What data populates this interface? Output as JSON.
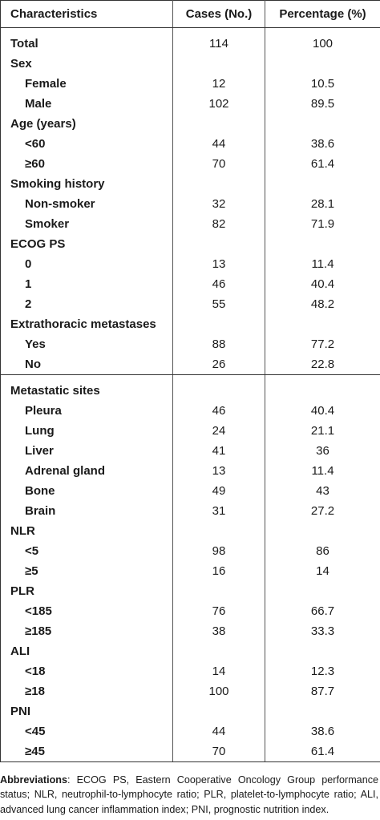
{
  "table": {
    "headers": [
      "Characteristics",
      "Cases (No.)",
      "Percentage (%)"
    ],
    "groups": [
      {
        "rows": [
          {
            "type": "cat",
            "label": "Total",
            "cases": "114",
            "pct": "100"
          },
          {
            "type": "cat",
            "label": "Sex",
            "cases": "",
            "pct": ""
          },
          {
            "type": "sub",
            "label": "Female",
            "cases": "12",
            "pct": "10.5"
          },
          {
            "type": "sub",
            "label": "Male",
            "cases": "102",
            "pct": "89.5"
          },
          {
            "type": "cat",
            "label": "Age (years)",
            "cases": "",
            "pct": ""
          },
          {
            "type": "sub",
            "label": "<60",
            "cases": "44",
            "pct": "38.6"
          },
          {
            "type": "sub",
            "label": "≥60",
            "cases": "70",
            "pct": "61.4"
          },
          {
            "type": "cat",
            "label": "Smoking history",
            "cases": "",
            "pct": ""
          },
          {
            "type": "sub",
            "label": "Non-smoker",
            "cases": "32",
            "pct": "28.1"
          },
          {
            "type": "sub",
            "label": "Smoker",
            "cases": "82",
            "pct": "71.9"
          },
          {
            "type": "cat",
            "label": "ECOG PS",
            "cases": "",
            "pct": ""
          },
          {
            "type": "sub",
            "label": "0",
            "cases": "13",
            "pct": "11.4"
          },
          {
            "type": "sub",
            "label": "1",
            "cases": "46",
            "pct": "40.4"
          },
          {
            "type": "sub",
            "label": "2",
            "cases": "55",
            "pct": "48.2"
          },
          {
            "type": "cat",
            "label": "Extrathoracic metastases",
            "cases": "",
            "pct": ""
          },
          {
            "type": "sub",
            "label": "Yes",
            "cases": "88",
            "pct": "77.2"
          },
          {
            "type": "sub",
            "label": "No",
            "cases": "26",
            "pct": "22.8"
          }
        ]
      },
      {
        "rows": [
          {
            "type": "cat",
            "label": "Metastatic sites",
            "cases": "",
            "pct": ""
          },
          {
            "type": "sub",
            "label": "Pleura",
            "cases": "46",
            "pct": "40.4"
          },
          {
            "type": "sub",
            "label": "Lung",
            "cases": "24",
            "pct": "21.1"
          },
          {
            "type": "sub",
            "label": "Liver",
            "cases": "41",
            "pct": "36"
          },
          {
            "type": "sub",
            "label": "Adrenal gland",
            "cases": "13",
            "pct": "11.4"
          },
          {
            "type": "sub",
            "label": "Bone",
            "cases": "49",
            "pct": "43"
          },
          {
            "type": "sub",
            "label": "Brain",
            "cases": "31",
            "pct": "27.2"
          },
          {
            "type": "cat",
            "label": "NLR",
            "cases": "",
            "pct": ""
          },
          {
            "type": "sub",
            "label": "<5",
            "cases": "98",
            "pct": "86"
          },
          {
            "type": "sub",
            "label": "≥5",
            "cases": "16",
            "pct": "14"
          },
          {
            "type": "cat",
            "label": "PLR",
            "cases": "",
            "pct": ""
          },
          {
            "type": "sub",
            "label": "<185",
            "cases": "76",
            "pct": "66.7"
          },
          {
            "type": "sub",
            "label": "≥185",
            "cases": "38",
            "pct": "33.3"
          },
          {
            "type": "cat",
            "label": "ALI",
            "cases": "",
            "pct": ""
          },
          {
            "type": "sub",
            "label": "<18",
            "cases": "14",
            "pct": "12.3"
          },
          {
            "type": "sub",
            "label": "≥18",
            "cases": "100",
            "pct": "87.7"
          },
          {
            "type": "cat",
            "label": "PNI",
            "cases": "",
            "pct": ""
          },
          {
            "type": "sub",
            "label": "<45",
            "cases": "44",
            "pct": "38.6"
          },
          {
            "type": "sub",
            "label": "≥45",
            "cases": "70",
            "pct": "61.4"
          }
        ]
      }
    ]
  },
  "footnote": {
    "label": "Abbreviations",
    "text": ": ECOG PS, Eastern Cooperative Oncology Group performance status; NLR, neutrophil-to-lymphocyte ratio; PLR, platelet-to-lymphocyte ratio; ALI, advanced lung cancer inflammation index; PNI, prognostic nutrition index."
  }
}
